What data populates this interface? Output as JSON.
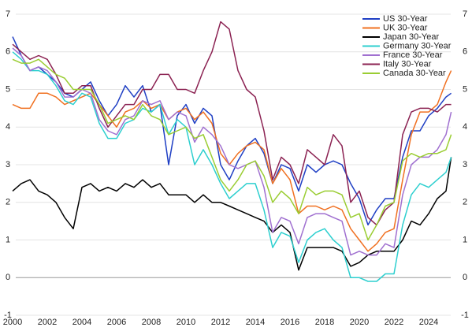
{
  "chart_data": {
    "type": "line",
    "x": [
      2000,
      2000.5,
      2001,
      2001.5,
      2002,
      2002.5,
      2003,
      2003.5,
      2004,
      2004.5,
      2005,
      2005.5,
      2006,
      2006.5,
      2007,
      2007.5,
      2008,
      2008.5,
      2009,
      2009.5,
      2010,
      2010.5,
      2011,
      2011.5,
      2012,
      2012.5,
      2013,
      2013.5,
      2014,
      2014.5,
      2015,
      2015.5,
      2016,
      2016.5,
      2017,
      2017.5,
      2018,
      2018.5,
      2019,
      2019.5,
      2020,
      2020.5,
      2021,
      2021.5,
      2022,
      2022.5,
      2023,
      2023.5,
      2024,
      2024.5,
      2025,
      2025.3
    ],
    "xlim": [
      2000,
      2026
    ],
    "xticks": [
      2000,
      2002,
      2004,
      2006,
      2008,
      2010,
      2012,
      2014,
      2016,
      2018,
      2020,
      2022,
      2024
    ],
    "ylim": [
      -1,
      7
    ],
    "yticks": [
      -1,
      0,
      1,
      2,
      3,
      4,
      5,
      6,
      7
    ],
    "y2lim": [
      -1,
      7
    ],
    "y2ticks": [
      -1,
      0,
      1,
      2,
      3,
      4,
      5,
      6,
      7
    ],
    "grid": true,
    "legend": "top-right",
    "series": [
      {
        "name": "US 30-Year",
        "color": "#1f3fc4",
        "values": [
          6.4,
          5.9,
          5.5,
          5.6,
          5.4,
          5.2,
          4.9,
          4.8,
          5.0,
          5.2,
          4.7,
          4.3,
          4.6,
          5.1,
          4.8,
          5.1,
          4.4,
          4.6,
          3.0,
          4.3,
          4.6,
          4.1,
          4.5,
          4.3,
          3.0,
          2.6,
          3.1,
          3.5,
          3.7,
          3.3,
          2.5,
          3.0,
          2.9,
          2.3,
          3.0,
          2.8,
          3.0,
          3.1,
          3.0,
          2.5,
          2.1,
          1.4,
          1.8,
          2.1,
          2.1,
          3.2,
          3.9,
          3.9,
          4.3,
          4.5,
          4.8,
          4.9
        ]
      },
      {
        "name": "UK 30-Year",
        "color": "#f07020",
        "values": [
          4.6,
          4.5,
          4.5,
          4.9,
          4.9,
          4.8,
          4.6,
          4.7,
          4.8,
          4.9,
          4.6,
          4.3,
          4.0,
          4.4,
          4.5,
          4.7,
          4.5,
          4.6,
          4.2,
          4.4,
          4.5,
          4.2,
          4.4,
          4.1,
          3.3,
          3.0,
          3.3,
          3.5,
          3.6,
          3.4,
          2.5,
          2.9,
          2.6,
          1.7,
          1.9,
          1.9,
          1.8,
          1.9,
          1.8,
          1.3,
          1.0,
          0.7,
          0.9,
          1.2,
          1.3,
          2.6,
          3.8,
          4.4,
          4.4,
          4.6,
          5.2,
          5.5
        ]
      },
      {
        "name": "Japan 30-Year",
        "color": "#000000",
        "values": [
          2.3,
          2.5,
          2.6,
          2.3,
          2.2,
          2.0,
          1.6,
          1.3,
          2.4,
          2.5,
          2.3,
          2.4,
          2.3,
          2.5,
          2.4,
          2.6,
          2.4,
          2.5,
          2.2,
          2.2,
          2.2,
          2.0,
          2.2,
          2.0,
          2.0,
          1.9,
          1.8,
          1.7,
          1.6,
          1.5,
          1.2,
          1.4,
          1.2,
          0.2,
          0.8,
          0.8,
          0.8,
          0.8,
          0.7,
          0.3,
          0.4,
          0.6,
          0.7,
          0.7,
          0.7,
          1.0,
          1.5,
          1.4,
          1.7,
          2.1,
          2.3,
          3.2
        ]
      },
      {
        "name": "Germany 30-Year",
        "color": "#2dcfcf",
        "values": [
          6.0,
          5.8,
          5.5,
          5.5,
          5.4,
          5.1,
          4.7,
          4.6,
          4.9,
          4.8,
          4.1,
          3.7,
          3.7,
          4.1,
          4.2,
          4.5,
          4.4,
          4.6,
          3.8,
          4.2,
          4.0,
          3.0,
          3.4,
          3.0,
          2.5,
          2.1,
          2.3,
          2.5,
          2.5,
          1.8,
          0.8,
          1.2,
          1.1,
          0.4,
          1.0,
          1.2,
          1.3,
          1.0,
          0.8,
          0.0,
          0.0,
          -0.1,
          -0.1,
          0.1,
          0.1,
          1.4,
          2.2,
          2.5,
          2.4,
          2.6,
          2.8,
          3.2
        ]
      },
      {
        "name": "France 30-Year",
        "color": "#a070d0",
        "values": [
          6.1,
          5.9,
          5.5,
          5.6,
          5.5,
          5.2,
          4.8,
          4.8,
          5.0,
          4.9,
          4.2,
          3.9,
          3.8,
          4.2,
          4.3,
          4.7,
          4.6,
          4.7,
          4.2,
          4.4,
          4.3,
          3.6,
          4.0,
          3.8,
          3.5,
          3.0,
          2.9,
          3.0,
          3.1,
          2.4,
          1.2,
          1.6,
          1.5,
          0.9,
          1.6,
          1.7,
          1.7,
          1.6,
          1.5,
          0.6,
          0.7,
          0.6,
          0.6,
          0.9,
          0.8,
          2.2,
          3.0,
          3.2,
          3.2,
          3.4,
          3.8,
          4.4
        ]
      },
      {
        "name": "Italy 30-Year",
        "color": "#8b2252",
        "values": [
          6.2,
          6.0,
          5.8,
          5.9,
          5.8,
          5.4,
          4.9,
          4.9,
          5.1,
          5.1,
          4.5,
          4.0,
          4.3,
          4.6,
          4.6,
          5.0,
          5.0,
          5.4,
          5.4,
          5.0,
          5.0,
          4.9,
          5.5,
          6.0,
          6.8,
          6.6,
          5.5,
          5.0,
          4.8,
          3.9,
          2.6,
          3.2,
          3.0,
          2.5,
          3.4,
          3.2,
          3.0,
          3.8,
          3.5,
          2.0,
          2.3,
          1.6,
          1.4,
          1.8,
          2.0,
          3.8,
          4.4,
          4.5,
          4.5,
          4.4,
          4.6,
          4.6
        ]
      },
      {
        "name": "Canada 30-Year",
        "color": "#9acd32",
        "values": [
          5.8,
          5.7,
          5.7,
          5.8,
          5.6,
          5.4,
          5.3,
          5.0,
          5.0,
          5.0,
          4.6,
          4.1,
          4.2,
          4.3,
          4.2,
          4.6,
          4.3,
          4.2,
          3.8,
          3.9,
          4.0,
          3.7,
          3.8,
          3.2,
          2.6,
          2.3,
          2.6,
          3.0,
          3.1,
          2.7,
          2.0,
          2.3,
          2.1,
          1.7,
          2.4,
          2.2,
          2.3,
          2.3,
          2.2,
          1.6,
          1.7,
          1.0,
          1.4,
          1.9,
          2.0,
          3.1,
          3.3,
          3.2,
          3.3,
          3.3,
          3.4,
          3.8
        ]
      }
    ]
  }
}
